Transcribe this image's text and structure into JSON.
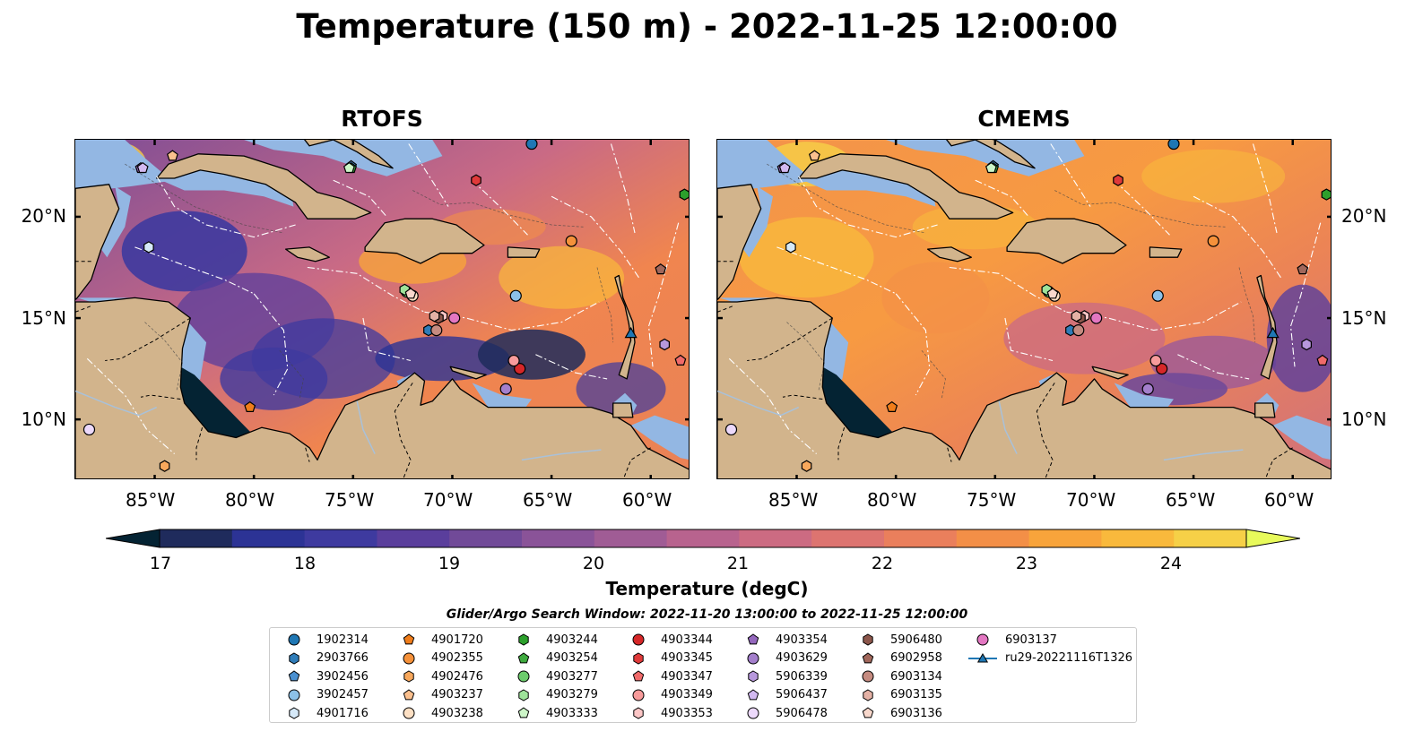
{
  "figure": {
    "title": "Temperature (150 m) - 2022-11-25 12:00:00",
    "panels": [
      {
        "id": "rtofs",
        "title": "RTOFS"
      },
      {
        "id": "cmems",
        "title": "CMEMS"
      }
    ],
    "lon_ticks": [
      "85°W",
      "80°W",
      "75°W",
      "70°W",
      "65°W",
      "60°W"
    ],
    "lat_ticks": [
      "20°N",
      "15°N",
      "10°N"
    ],
    "colorbar": {
      "label": "Temperature (degC)",
      "ticks": [
        "17",
        "18",
        "19",
        "20",
        "21",
        "22",
        "23",
        "24"
      ],
      "range": [
        16.75,
        24.75
      ],
      "extend": "both",
      "colormap": "thermal",
      "colors": [
        "#042333",
        "#1f2b5c",
        "#2c3395",
        "#3e3a9f",
        "#5a3e9c",
        "#714a98",
        "#8a5398",
        "#a05c95",
        "#b8638e",
        "#cc6b82",
        "#dd7470",
        "#ea7f5c",
        "#f38f47",
        "#f8a43b",
        "#f9b93c",
        "#f6d047",
        "#e8fa5b"
      ]
    },
    "search_window": "Glider/Argo Search Window: 2022-11-20 13:00:00 to 2022-11-25 12:00:00",
    "legend": [
      {
        "label": "1902314",
        "marker": "circle",
        "color": "#1f77b4"
      },
      {
        "label": "2903766",
        "marker": "hexagon",
        "color": "#2f7cb8"
      },
      {
        "label": "3902456",
        "marker": "pentagon",
        "color": "#4a90d0"
      },
      {
        "label": "3902457",
        "marker": "circle",
        "color": "#8cc1e8"
      },
      {
        "label": "4901716",
        "marker": "hexagon",
        "color": "#d6e9f8"
      },
      {
        "label": "4901720",
        "marker": "pentagon",
        "color": "#f07d1a"
      },
      {
        "label": "4902355",
        "marker": "circle",
        "color": "#f5913a"
      },
      {
        "label": "4902476",
        "marker": "hexagon",
        "color": "#f8a85c"
      },
      {
        "label": "4903237",
        "marker": "pentagon",
        "color": "#fbc08e"
      },
      {
        "label": "4903238",
        "marker": "circle",
        "color": "#fde0c4"
      },
      {
        "label": "4903244",
        "marker": "hexagon",
        "color": "#2ca02c"
      },
      {
        "label": "4903254",
        "marker": "pentagon",
        "color": "#3eaa3e"
      },
      {
        "label": "4903277",
        "marker": "circle",
        "color": "#6ccc6c"
      },
      {
        "label": "4903279",
        "marker": "hexagon",
        "color": "#9ee39a"
      },
      {
        "label": "4903333",
        "marker": "pentagon",
        "color": "#cdf5c8"
      },
      {
        "label": "4903344",
        "marker": "circle",
        "color": "#d62728"
      },
      {
        "label": "4903345",
        "marker": "hexagon",
        "color": "#e03a3a"
      },
      {
        "label": "4903347",
        "marker": "pentagon",
        "color": "#f06a6a"
      },
      {
        "label": "4903349",
        "marker": "circle",
        "color": "#f89b9b"
      },
      {
        "label": "4903353",
        "marker": "hexagon",
        "color": "#fcc6c6"
      },
      {
        "label": "4903354",
        "marker": "pentagon",
        "color": "#9467bd"
      },
      {
        "label": "4903629",
        "marker": "circle",
        "color": "#a47fcc"
      },
      {
        "label": "5906339",
        "marker": "hexagon",
        "color": "#b798dc"
      },
      {
        "label": "5906437",
        "marker": "pentagon",
        "color": "#d2b9f0"
      },
      {
        "label": "5906478",
        "marker": "circle",
        "color": "#ecd9fb"
      },
      {
        "label": "5906480",
        "marker": "hexagon",
        "color": "#8c564b"
      },
      {
        "label": "6902958",
        "marker": "pentagon",
        "color": "#a1675b"
      },
      {
        "label": "6903134",
        "marker": "circle",
        "color": "#c58b80"
      },
      {
        "label": "6903135",
        "marker": "hexagon",
        "color": "#e4b1a5"
      },
      {
        "label": "6903136",
        "marker": "pentagon",
        "color": "#f8d8cc"
      },
      {
        "label": "6903137",
        "marker": "circle",
        "color": "#e377c2"
      },
      {
        "label": "ru29-20221116T1326",
        "marker": "triangle-line",
        "color": "#1f77b4"
      }
    ],
    "floats_on_map": [
      {
        "label": "1902314",
        "lon": -66.0,
        "lat": 23.6
      },
      {
        "label": "2903766",
        "lon": -71.2,
        "lat": 14.4
      },
      {
        "label": "3902456",
        "lon": -75.1,
        "lat": 22.5
      },
      {
        "label": "3902457",
        "lon": -66.8,
        "lat": 16.1
      },
      {
        "label": "4901716",
        "lon": -85.3,
        "lat": 18.5
      },
      {
        "label": "4901720",
        "lon": -80.2,
        "lat": 10.6
      },
      {
        "label": "4902355",
        "lon": -64.0,
        "lat": 18.8
      },
      {
        "label": "4902476",
        "lon": -84.5,
        "lat": 7.7
      },
      {
        "label": "4903237",
        "lon": -84.1,
        "lat": 23.0
      },
      {
        "label": "4903238",
        "lon": -72.0,
        "lat": 16.1
      },
      {
        "label": "4903244",
        "lon": -58.3,
        "lat": 21.1
      },
      {
        "label": "4903254",
        "lon": -75.1,
        "lat": 22.4
      },
      {
        "label": "4903277",
        "lon": -72.3,
        "lat": 16.3
      },
      {
        "label": "4903279",
        "lon": -72.4,
        "lat": 16.4
      },
      {
        "label": "4903333",
        "lon": -75.2,
        "lat": 22.4
      },
      {
        "label": "4903344",
        "lon": -66.6,
        "lat": 12.5
      },
      {
        "label": "4903345",
        "lon": -68.8,
        "lat": 21.8
      },
      {
        "label": "4903347",
        "lon": -58.5,
        "lat": 12.9
      },
      {
        "label": "4903349",
        "lon": -66.9,
        "lat": 12.9
      },
      {
        "label": "4903353",
        "lon": -70.5,
        "lat": 15.1
      },
      {
        "label": "4903354",
        "lon": -85.7,
        "lat": 22.4
      },
      {
        "label": "4903629",
        "lon": -67.3,
        "lat": 11.5
      },
      {
        "label": "5906339",
        "lon": -59.3,
        "lat": 13.7
      },
      {
        "label": "5906437",
        "lon": -85.6,
        "lat": 22.4
      },
      {
        "label": "5906478",
        "lon": -88.3,
        "lat": 9.5
      },
      {
        "label": "5906480",
        "lon": -70.7,
        "lat": 15.0
      },
      {
        "label": "6902958",
        "lon": -59.5,
        "lat": 17.4
      },
      {
        "label": "6903134",
        "lon": -70.8,
        "lat": 14.4
      },
      {
        "label": "6903135",
        "lon": -70.9,
        "lat": 15.1
      },
      {
        "label": "6903136",
        "lon": -72.1,
        "lat": 16.2
      },
      {
        "label": "6903137",
        "lon": -69.9,
        "lat": 15.0
      },
      {
        "label": "ru29-20221116T1326",
        "lon": -61.0,
        "lat": 14.2
      }
    ]
  }
}
